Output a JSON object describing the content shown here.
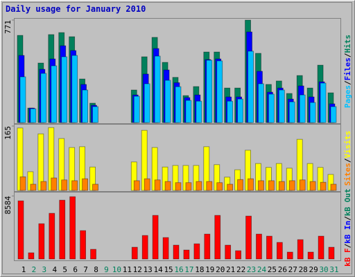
{
  "chart_data": [
    {
      "type": "bar",
      "title": "Daily usage for January 2010",
      "legend_separator": "/",
      "ylim": [
        0,
        771
      ],
      "yticks": [
        771
      ],
      "series": [
        {
          "name": "Hits",
          "color": "#00805c",
          "values": [
            656,
            109,
            448,
            662,
            677,
            646,
            328,
            146,
            0,
            0,
            0,
            245,
            495,
            641,
            453,
            340,
            203,
            271,
            531,
            531,
            260,
            260,
            771,
            521,
            287,
            313,
            219,
            354,
            260,
            432,
            224
          ]
        },
        {
          "name": "Files",
          "color": "#0000ff",
          "values": [
            505,
            109,
            401,
            479,
            578,
            542,
            287,
            130,
            0,
            0,
            0,
            208,
            365,
            557,
            396,
            300,
            188,
            208,
            474,
            479,
            193,
            193,
            682,
            386,
            229,
            260,
            177,
            276,
            193,
            307,
            141
          ]
        },
        {
          "name": "Pages",
          "color": "#00c0ff",
          "values": [
            344,
            104,
            370,
            427,
            495,
            505,
            245,
            120,
            0,
            0,
            0,
            198,
            292,
            500,
            318,
            270,
            167,
            161,
            469,
            464,
            161,
            177,
            537,
            292,
            214,
            245,
            156,
            208,
            151,
            297,
            120
          ]
        }
      ]
    },
    {
      "type": "bar",
      "ylim": [
        0,
        165
      ],
      "yticks": [
        165
      ],
      "series": [
        {
          "name": "Visits",
          "color": "#ffff00",
          "values": [
            160,
            48,
            145,
            161,
            133,
            110,
            112,
            60,
            0,
            0,
            0,
            73,
            154,
            110,
            60,
            64,
            64,
            64,
            112,
            66,
            34,
            53,
            103,
            69,
            59,
            69,
            57,
            131,
            69,
            59,
            41
          ]
        },
        {
          "name": "Sites",
          "color": "#ff8000",
          "values": [
            35,
            16,
            23,
            32,
            27,
            25,
            30,
            16,
            0,
            0,
            0,
            25,
            30,
            27,
            23,
            20,
            20,
            23,
            23,
            20,
            16,
            28,
            30,
            25,
            25,
            23,
            25,
            27,
            23,
            21,
            16
          ]
        }
      ]
    },
    {
      "type": "bar",
      "ylim": [
        0,
        8584
      ],
      "yticks": [
        8584
      ],
      "categories": [
        "1",
        "2",
        "3",
        "4",
        "5",
        "6",
        "7",
        "8",
        "9",
        "10",
        "11",
        "12",
        "13",
        "14",
        "15",
        "16",
        "17",
        "18",
        "19",
        "20",
        "21",
        "22",
        "23",
        "24",
        "25",
        "26",
        "27",
        "28",
        "29",
        "30",
        "31"
      ],
      "x_label_colors": [
        "#000000",
        "#00805c",
        "#00805c",
        "#000000",
        "#000000",
        "#000000",
        "#000000",
        "#000000",
        "#00805c",
        "#00805c",
        "#000000",
        "#000000",
        "#000000",
        "#000000",
        "#000000",
        "#00805c",
        "#00805c",
        "#000000",
        "#000000",
        "#000000",
        "#000000",
        "#000000",
        "#00805c",
        "#00805c",
        "#000000",
        "#000000",
        "#000000",
        "#000000",
        "#000000",
        "#00805c",
        "#00805c"
      ],
      "series": [
        {
          "name": "kB Out",
          "color": "#00805c"
        },
        {
          "name": "kB In",
          "color": "#0000ff"
        },
        {
          "name": "kB F",
          "color": "#ff0000",
          "values": [
            7924,
            849,
            4811,
            6226,
            8018,
            8490,
            3868,
            1321,
            0,
            0,
            0,
            1604,
            3207,
            5943,
            2924,
            1887,
            1226,
            2075,
            3396,
            5943,
            1887,
            1132,
            5849,
            3396,
            3113,
            2264,
            943,
            2641,
            943,
            3113,
            1604
          ]
        }
      ]
    }
  ]
}
